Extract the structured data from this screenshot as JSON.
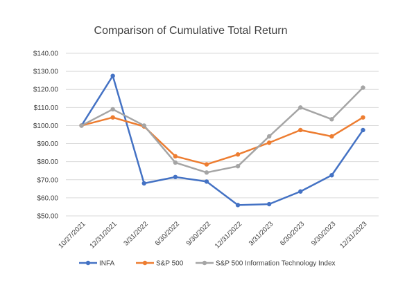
{
  "chart_data": {
    "type": "line",
    "title": "Comparison of Cumulative Total Return",
    "xlabel": "",
    "ylabel": "",
    "categories": [
      "10/27/2021",
      "12/31/2021",
      "3/31/2022",
      "6/30/2022",
      "9/30/2022",
      "12/31/2022",
      "3/31/2023",
      "6/30/2023",
      "9/30/2023",
      "12/31/2023"
    ],
    "ylim": [
      50,
      140
    ],
    "yticks": [
      "$50.00",
      "$60.00",
      "$70.00",
      "$80.00",
      "$90.00",
      "$100.00",
      "$110.00",
      "$120.00",
      "$130.00",
      "$140.00"
    ],
    "grid": true,
    "legend_position": "bottom",
    "series": [
      {
        "name": "INFA",
        "color": "#4472c4",
        "values": [
          100,
          127.5,
          68,
          71.5,
          69,
          56,
          56.5,
          63.5,
          72.5,
          97.5
        ]
      },
      {
        "name": "S&P 500",
        "color": "#ed7d31",
        "values": [
          100,
          104.5,
          99.5,
          83,
          78.5,
          84,
          90.5,
          97.5,
          94,
          104.5
        ]
      },
      {
        "name": "S&P 500 Information Technology Index",
        "color": "#a5a5a5",
        "values": [
          100,
          109,
          100,
          79.5,
          74,
          77.5,
          94,
          110,
          103.5,
          121
        ]
      }
    ]
  }
}
